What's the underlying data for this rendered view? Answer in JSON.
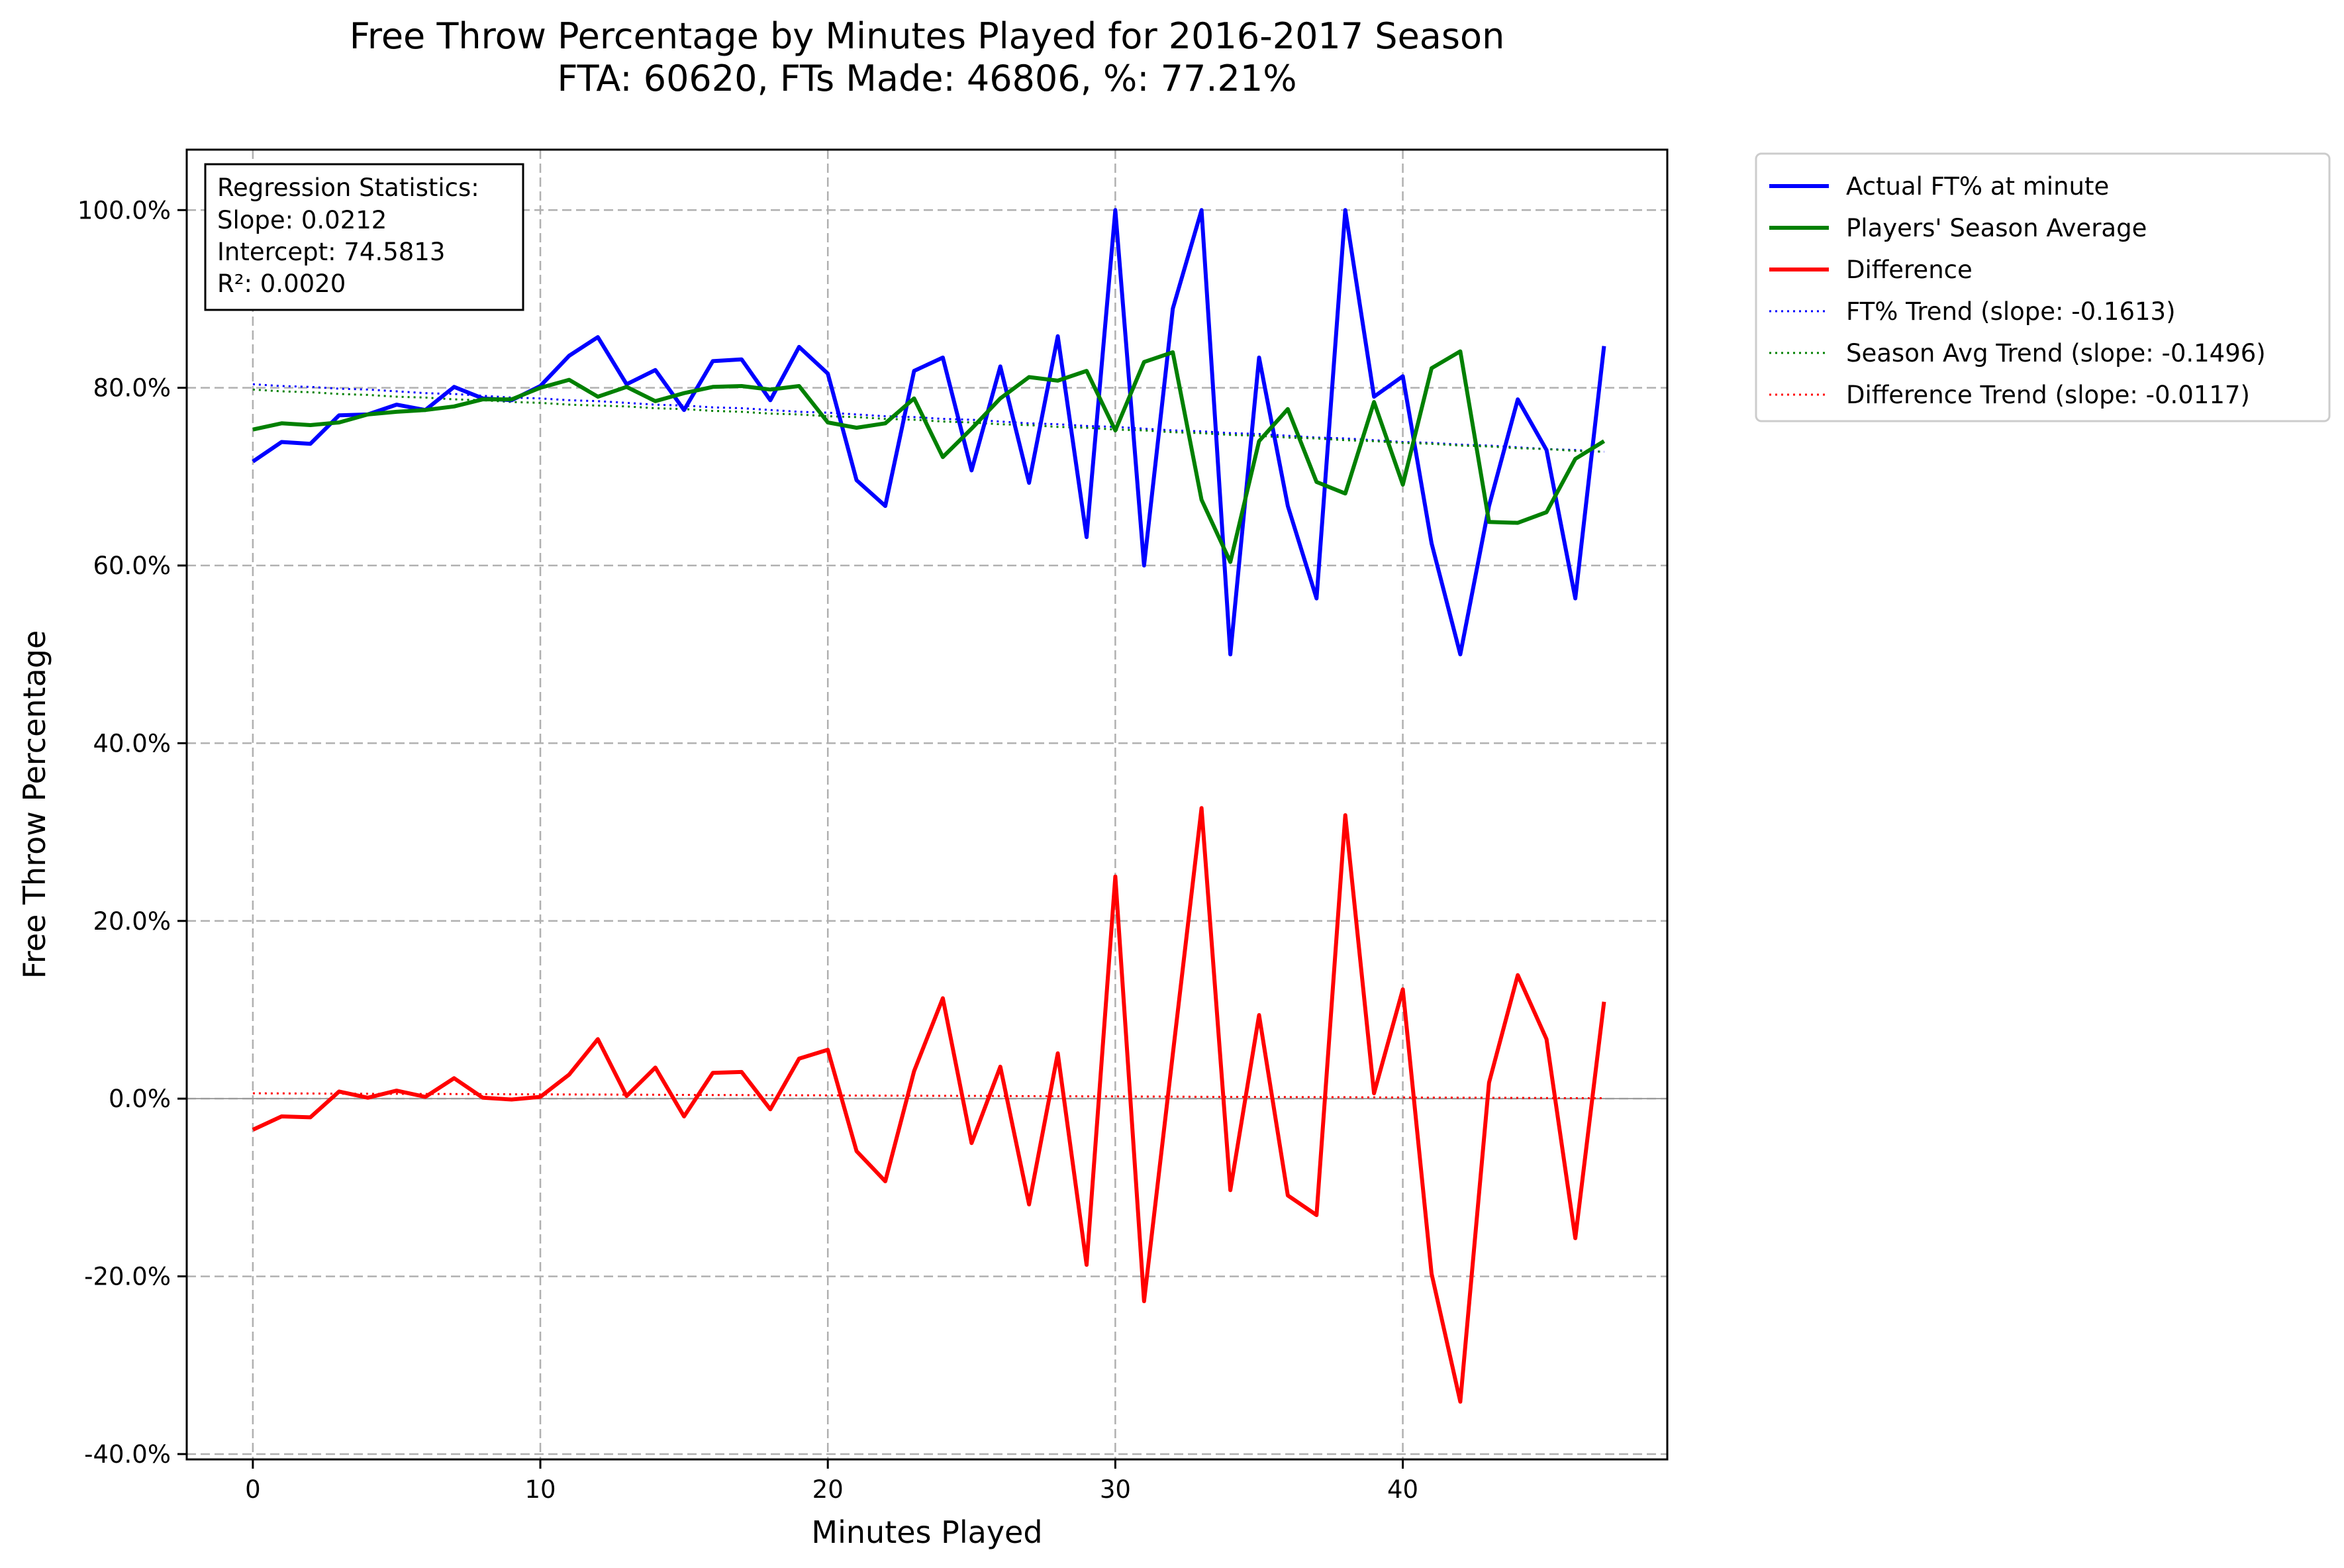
{
  "chart_data": {
    "type": "line",
    "title": "Free Throw Percentage by Minutes Played for 2016-2017 Season",
    "subtitle": "FTA: 60620, FTs Made: 46806, %: 77.21%",
    "xlabel": "Minutes Played",
    "ylabel": "Free Throw Percentage",
    "xlim": [
      -2.3,
      49.2
    ],
    "ylim": [
      -40.6,
      106.8
    ],
    "x_ticks": [
      0,
      10,
      20,
      30,
      40
    ],
    "y_ticks": [
      -40,
      -20,
      0,
      20,
      40,
      60,
      80,
      100
    ],
    "y_tick_labels": [
      "-40.0%",
      "-20.0%",
      "0.0%",
      "20.0%",
      "40.0%",
      "60.0%",
      "80.0%",
      "100.0%"
    ],
    "grid": true,
    "legend_position": "outside top-right",
    "x": [
      0,
      1,
      2,
      3,
      4,
      5,
      6,
      7,
      8,
      9,
      10,
      11,
      12,
      13,
      14,
      15,
      16,
      17,
      18,
      19,
      20,
      21,
      22,
      23,
      24,
      25,
      26,
      27,
      28,
      29,
      30,
      31,
      32,
      33,
      34,
      35,
      36,
      37,
      38,
      39,
      40,
      41,
      42,
      43,
      44,
      45,
      46,
      47
    ],
    "series": [
      {
        "name": "Actual FT% at minute",
        "color": "#0000ff",
        "style": "solid",
        "values": [
          71.7,
          73.9,
          73.7,
          76.9,
          77.0,
          78.1,
          77.5,
          80.1,
          78.8,
          78.6,
          80.2,
          83.6,
          85.7,
          80.4,
          82.0,
          77.5,
          83.0,
          83.2,
          78.6,
          84.6,
          81.6,
          69.6,
          66.7,
          81.9,
          83.4,
          70.7,
          82.4,
          69.3,
          85.8,
          63.2,
          100.0,
          60.0,
          88.9,
          100.0,
          50.0,
          83.4,
          66.7,
          56.3,
          100.0,
          79.0,
          81.3,
          62.5,
          50.0,
          66.7,
          78.7,
          73.0,
          56.3,
          84.7
        ]
      },
      {
        "name": "Players' Season Average",
        "color": "#008000",
        "style": "solid",
        "values": [
          75.3,
          76.0,
          75.8,
          76.1,
          77.0,
          77.3,
          77.5,
          77.9,
          78.7,
          78.7,
          80.0,
          80.9,
          79.0,
          80.1,
          78.5,
          79.4,
          80.1,
          80.2,
          79.8,
          80.2,
          76.1,
          75.5,
          76.0,
          78.8,
          72.2,
          75.4,
          78.8,
          81.2,
          80.8,
          81.9,
          75.2,
          82.9,
          84.0,
          67.4,
          60.4,
          74.0,
          77.6,
          69.4,
          68.1,
          78.4,
          69.1,
          82.2,
          84.1,
          64.9,
          64.8,
          66.0,
          72.0,
          74.0
        ]
      },
      {
        "name": "Difference",
        "color": "#ff0000",
        "style": "solid",
        "values": [
          -3.5,
          -2.0,
          -2.1,
          0.8,
          0.1,
          0.9,
          0.2,
          2.3,
          0.1,
          -0.1,
          0.2,
          2.7,
          6.7,
          0.3,
          3.5,
          -2.0,
          2.9,
          3.0,
          -1.2,
          4.5,
          5.5,
          -5.9,
          -9.3,
          3.1,
          11.3,
          -5.0,
          3.6,
          -11.9,
          5.1,
          -18.7,
          25.0,
          -22.8,
          5.0,
          32.7,
          -10.3,
          9.4,
          -10.9,
          -13.1,
          31.9,
          0.6,
          12.3,
          -19.7,
          -34.1,
          1.8,
          13.9,
          6.7,
          -15.7,
          10.9
        ]
      },
      {
        "name": "FT% Trend (slope: -0.1613)",
        "color": "#0000ff",
        "style": "dotted",
        "values": [
          80.4,
          80.2,
          80.1,
          79.9,
          79.8,
          79.6,
          79.4,
          79.3,
          79.1,
          78.9,
          78.8,
          78.6,
          78.5,
          78.3,
          78.1,
          78.0,
          77.8,
          77.7,
          77.5,
          77.3,
          77.2,
          77.0,
          76.8,
          76.7,
          76.5,
          76.4,
          76.2,
          76.0,
          75.9,
          75.7,
          75.6,
          75.4,
          75.2,
          75.1,
          74.9,
          74.8,
          74.6,
          74.4,
          74.3,
          74.1,
          73.9,
          73.8,
          73.6,
          73.5,
          73.3,
          73.1,
          73.0,
          72.8
        ]
      },
      {
        "name": "Season Avg Trend (slope: -0.1496)",
        "color": "#008000",
        "style": "dotted",
        "values": [
          79.8,
          79.6,
          79.5,
          79.3,
          79.2,
          79.0,
          78.9,
          78.7,
          78.6,
          78.4,
          78.3,
          78.1,
          78.0,
          77.9,
          77.7,
          77.6,
          77.4,
          77.3,
          77.1,
          77.0,
          76.8,
          76.7,
          76.5,
          76.4,
          76.2,
          76.1,
          75.9,
          75.8,
          75.6,
          75.5,
          75.3,
          75.2,
          75.0,
          74.9,
          74.7,
          74.6,
          74.4,
          74.3,
          74.1,
          74.0,
          73.8,
          73.7,
          73.5,
          73.4,
          73.2,
          73.1,
          72.9,
          72.8
        ]
      },
      {
        "name": "Difference Trend (slope: -0.0117)",
        "color": "#ff0000",
        "style": "dotted",
        "values": [
          0.6,
          0.59,
          0.58,
          0.56,
          0.55,
          0.54,
          0.53,
          0.52,
          0.51,
          0.49,
          0.48,
          0.47,
          0.46,
          0.45,
          0.44,
          0.42,
          0.41,
          0.4,
          0.39,
          0.38,
          0.37,
          0.35,
          0.34,
          0.33,
          0.32,
          0.31,
          0.3,
          0.28,
          0.27,
          0.26,
          0.25,
          0.24,
          0.23,
          0.21,
          0.2,
          0.19,
          0.18,
          0.17,
          0.16,
          0.14,
          0.13,
          0.12,
          0.11,
          0.1,
          0.09,
          0.07,
          0.06,
          0.05
        ]
      }
    ],
    "annotation": {
      "lines": [
        "Regression Statistics:",
        "Slope: 0.0212",
        "Intercept: 74.5813",
        "R²: 0.0020"
      ]
    }
  }
}
